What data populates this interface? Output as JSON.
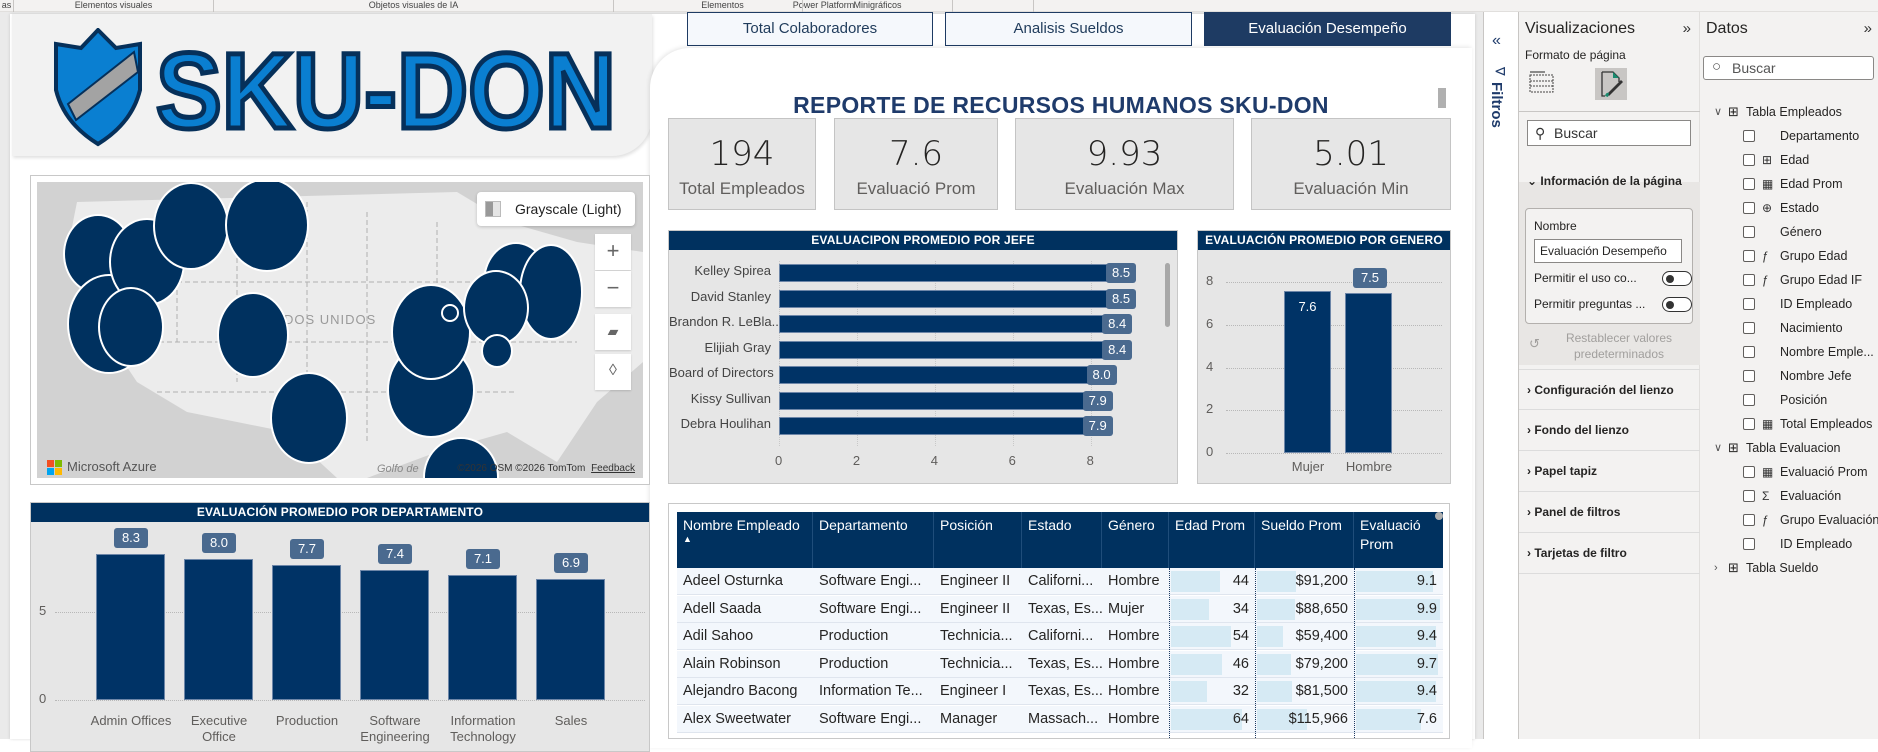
{
  "ribbon": {
    "groups": [
      "as",
      "Elementos visuales",
      "Objetos visuales de IA",
      "Power Platform",
      "Elementos",
      "Minigráficos"
    ]
  },
  "logo": {
    "text": "SKU-DON",
    "icon": "shield-icon"
  },
  "nav_tabs": [
    {
      "label": "Total Colaboradores",
      "active": false
    },
    {
      "label": "Analisis Sueldos",
      "active": false
    },
    {
      "label": "Evaluación Desempeño",
      "active": true
    }
  ],
  "report": {
    "title": "REPORTE DE RECURSOS HUMANOS SKU-DON"
  },
  "kpis": [
    {
      "value": "194",
      "label": "Total Empleados"
    },
    {
      "value": "7.6",
      "label": "Evaluació Prom"
    },
    {
      "value": "9.93",
      "label": "Evaluación Max"
    },
    {
      "value": "5.01",
      "label": "Evaluación Min"
    }
  ],
  "map": {
    "style_label": "Grayscale (Light)",
    "country_label": "ESTADOS UNIDOS",
    "gulf_label": "Golfo de",
    "credit": "©2026 OSM ©2026 TomTom",
    "feedback": "Feedback",
    "brand": "Microsoft Azure",
    "controls": [
      "zoom-in",
      "zoom-out",
      "tilt",
      "compass"
    ],
    "bubble_color": "#00315f"
  },
  "chart_data": [
    {
      "type": "bar",
      "orientation": "horizontal",
      "title": "EVALUACIPON PROMEDIO POR JEFE",
      "categories": [
        "Kelley Spirea",
        "David Stanley",
        "Brandon R. LeBla...",
        "Elijiah Gray",
        "Board of Directors",
        "Kissy Sullivan",
        "Debra Houlihan"
      ],
      "values": [
        8.5,
        8.5,
        8.4,
        8.4,
        8.0,
        7.9,
        7.9
      ],
      "data_labels": [
        "8.5",
        "8.5",
        "8.4",
        "8.4",
        "8.0",
        "7.9",
        "7.9"
      ],
      "xlabel": "",
      "ylabel": "",
      "xlim": [
        0,
        9.5
      ],
      "xticks": [
        0,
        2,
        4,
        6,
        8
      ],
      "grid": true,
      "bar_color": "#003366"
    },
    {
      "type": "bar",
      "title": "EVALUACIÓN PROMEDIO POR GENERO",
      "categories": [
        "Mujer",
        "Hombre"
      ],
      "values": [
        7.6,
        7.5
      ],
      "data_labels": [
        "7.6",
        "7.5"
      ],
      "xlabel": "",
      "ylabel": "",
      "ylim": [
        0,
        9
      ],
      "yticks": [
        0,
        2,
        4,
        6,
        8
      ],
      "grid": true,
      "bar_color": "#003366"
    },
    {
      "type": "bar",
      "title": "EVALUACIÓN PROMEDIO POR DEPARTAMENTO",
      "categories": [
        "Admin Offices",
        "Executive Office",
        "Production",
        "Software Engineering",
        "Information Technology",
        "Sales"
      ],
      "values": [
        8.3,
        8.0,
        7.7,
        7.4,
        7.1,
        6.9
      ],
      "data_labels": [
        "8.3",
        "8.0",
        "7.7",
        "7.4",
        "7.1",
        "6.9"
      ],
      "xlabel": "",
      "ylabel": "",
      "ylim": [
        0,
        9.5
      ],
      "yticks": [
        0,
        5
      ],
      "grid": true,
      "bar_color": "#003366"
    }
  ],
  "table": {
    "columns": [
      "Nombre Empleado",
      "Departamento",
      "Posición",
      "Estado",
      "Género",
      "Edad Prom",
      "Sueldo Prom",
      "Evaluació Prom"
    ],
    "sort_column": "Nombre Empleado",
    "sort_direction": "asc",
    "rows": [
      {
        "name": "Adeel Osturnka",
        "dept": "Software Engi...",
        "pos": "Engineer II",
        "state": "Californi...",
        "gender": "Hombre",
        "age": 44,
        "age_label": "44",
        "salary": 91200,
        "salary_label": "$91,200",
        "eval": 9.1,
        "eval_label": "9.1"
      },
      {
        "name": "Adell Saada",
        "dept": "Software Engi...",
        "pos": "Engineer II",
        "state": "Texas, Es...",
        "gender": "Mujer",
        "age": 34,
        "age_label": "34",
        "salary": 88650,
        "salary_label": "$88,650",
        "eval": 9.9,
        "eval_label": "9.9"
      },
      {
        "name": "Adil Sahoo",
        "dept": "Production",
        "pos": "Technicia...",
        "state": "Californi...",
        "gender": "Hombre",
        "age": 54,
        "age_label": "54",
        "salary": 59400,
        "salary_label": "$59,400",
        "eval": 9.4,
        "eval_label": "9.4"
      },
      {
        "name": "Alain Robinson",
        "dept": "Production",
        "pos": "Technicia...",
        "state": "Texas, Es...",
        "gender": "Hombre",
        "age": 46,
        "age_label": "46",
        "salary": 79200,
        "salary_label": "$79,200",
        "eval": 9.7,
        "eval_label": "9.7"
      },
      {
        "name": "Alejandro Bacong",
        "dept": "Information Te...",
        "pos": "Engineer I",
        "state": "Texas, Es...",
        "gender": "Hombre",
        "age": 32,
        "age_label": "32",
        "salary": 81500,
        "salary_label": "$81,500",
        "eval": 9.4,
        "eval_label": "9.4"
      },
      {
        "name": "Alex Sweetwater",
        "dept": "Software Engi...",
        "pos": "Manager",
        "state": "Massach...",
        "gender": "Hombre",
        "age": 64,
        "age_label": "64",
        "salary": 115966,
        "salary_label": "$115,966",
        "eval": 7.6,
        "eval_label": "7.6"
      }
    ]
  },
  "filters_pane": {
    "label": "Filtros",
    "collapse_icon": "double-chevron-left-icon",
    "icon": "filter-icon"
  },
  "viz_pane": {
    "title": "Visualizaciones",
    "subtitle": "Formato de página",
    "search_placeholder": "Buscar",
    "open_section": "Información de la página",
    "name_label": "Nombre",
    "name_value": "Evaluación Desempeño",
    "toggle1_label": "Permitir el uso co...",
    "toggle1_on": false,
    "toggle2_label": "Permitir preguntas ...",
    "toggle2_on": false,
    "reset_label": "Restablecer valores predeterminados",
    "sections": [
      "Configuración del lienzo",
      "Fondo del lienzo",
      "Papel tapiz",
      "Panel de filtros",
      "Tarjetas de filtro"
    ]
  },
  "data_pane": {
    "title": "Datos",
    "search_placeholder": "Buscar",
    "tables": [
      {
        "name": "Tabla Empleados",
        "expanded": true,
        "fields": [
          {
            "name": "Departamento",
            "icon": ""
          },
          {
            "name": "Edad",
            "icon": "sum-column-icon"
          },
          {
            "name": "Edad Prom",
            "icon": "calculator-icon"
          },
          {
            "name": "Estado",
            "icon": "globe-icon"
          },
          {
            "name": "Género",
            "icon": ""
          },
          {
            "name": "Grupo Edad",
            "icon": "calculated-column-icon"
          },
          {
            "name": "Grupo Edad IF",
            "icon": "calculated-column-icon"
          },
          {
            "name": "ID Empleado",
            "icon": ""
          },
          {
            "name": "Nacimiento",
            "icon": ""
          },
          {
            "name": "Nombre Emple...",
            "icon": ""
          },
          {
            "name": "Nombre Jefe",
            "icon": ""
          },
          {
            "name": "Posición",
            "icon": ""
          },
          {
            "name": "Total Empleados",
            "icon": "calculator-icon"
          }
        ]
      },
      {
        "name": "Tabla Evaluacion",
        "expanded": true,
        "fields": [
          {
            "name": "Evaluació Prom",
            "icon": "calculator-icon"
          },
          {
            "name": "Evaluación",
            "icon": "sigma-icon"
          },
          {
            "name": "Grupo Evaluación",
            "icon": "calculated-column-icon"
          },
          {
            "name": "ID Empleado",
            "icon": ""
          }
        ]
      },
      {
        "name": "Tabla Sueldo",
        "expanded": false,
        "fields": []
      }
    ]
  }
}
